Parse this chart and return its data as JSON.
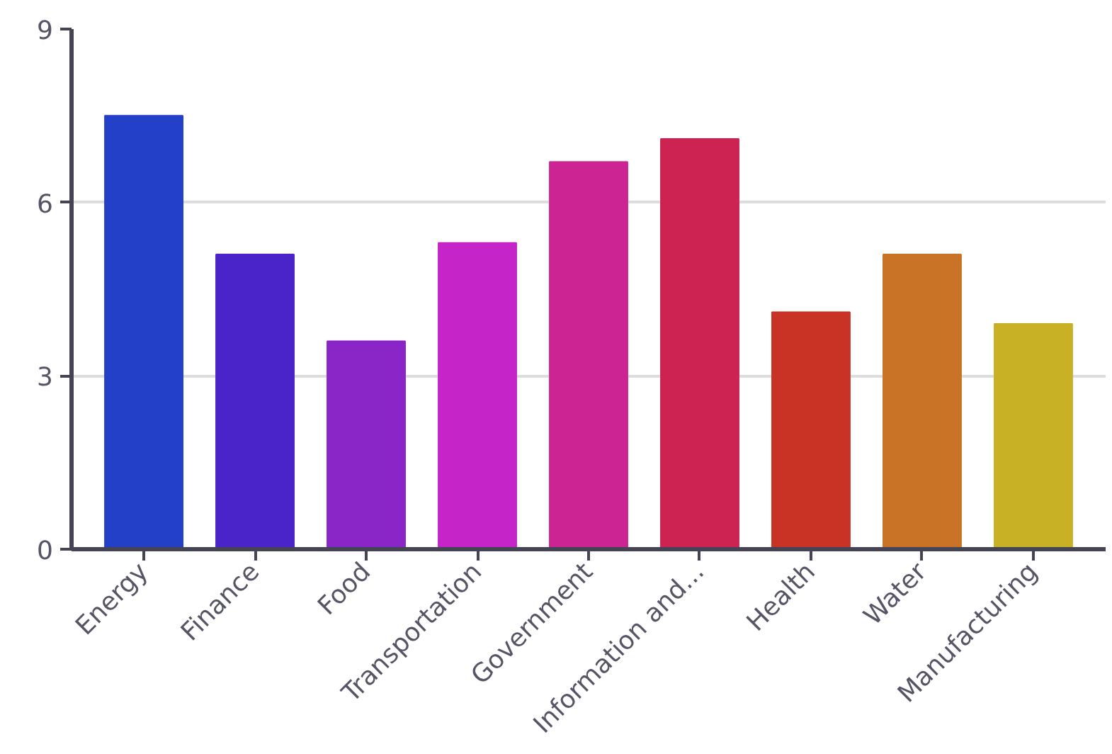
{
  "chart_data": {
    "type": "bar",
    "categories": [
      "Energy",
      "Finance",
      "Food",
      "Transportation",
      "Government",
      "Information and...",
      "Health",
      "Water",
      "Manufacturing"
    ],
    "values": [
      7.5,
      5.1,
      3.6,
      5.3,
      6.7,
      7.1,
      4.1,
      5.1,
      3.9
    ],
    "colors": [
      "#2340c8",
      "#4a24c8",
      "#8a26c8",
      "#c424c8",
      "#cc2593",
      "#cc2352",
      "#c83325",
      "#c87325",
      "#c8b125"
    ],
    "ylim": [
      0,
      9
    ],
    "yticks": [
      0,
      3,
      6,
      9
    ],
    "grid": "y"
  }
}
